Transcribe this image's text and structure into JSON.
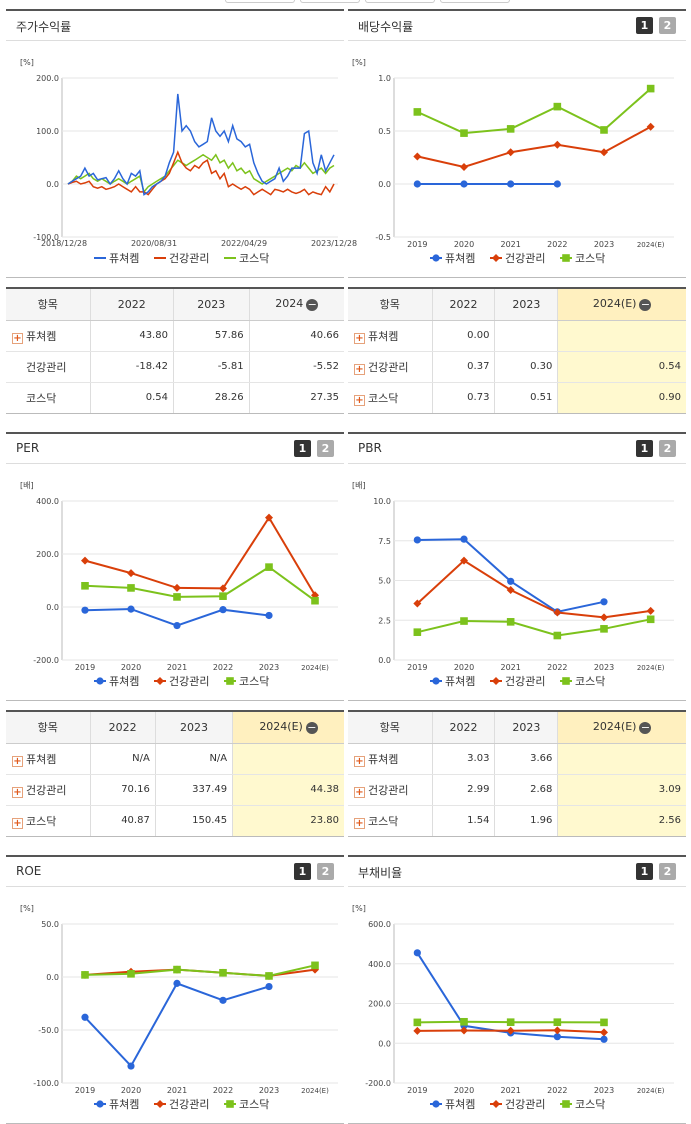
{
  "colors": {
    "s1": "#2a66d9",
    "s2": "#d93f0a",
    "s3": "#7cc21c"
  },
  "legend": [
    "퓨쳐켐",
    "건강관리",
    "코스닥"
  ],
  "panels": {
    "stock": {
      "title": "주가수익률",
      "unit": "[%]"
    },
    "div": {
      "title": "배당수익률",
      "unit": "[%]",
      "tab1": "1",
      "tab2": "2"
    },
    "per": {
      "title": "PER",
      "unit": "[배]",
      "tab1": "1",
      "tab2": "2"
    },
    "pbr": {
      "title": "PBR",
      "unit": "[배]",
      "tab1": "1",
      "tab2": "2"
    },
    "roe": {
      "title": "ROE",
      "unit": "[%]",
      "tab1": "1",
      "tab2": "2"
    },
    "debt": {
      "title": "부채비율",
      "unit": "[%]",
      "tab1": "1",
      "tab2": "2"
    }
  },
  "chart_data": [
    {
      "type": "line",
      "id": "stock",
      "title": "주가수익률",
      "ylim": [
        -100,
        200
      ],
      "yticks": [
        "200.0",
        "100.0",
        "0.0",
        "-100.0"
      ],
      "xticks": [
        "2018/12/28",
        "2020/08/31",
        "2022/04/29",
        "2023/12/28"
      ],
      "series": [
        {
          "name": "퓨쳐켐",
          "values": [
            0,
            5,
            10,
            15,
            30,
            15,
            20,
            8,
            10,
            12,
            0,
            10,
            25,
            10,
            0,
            20,
            15,
            25,
            -20,
            -15,
            -5,
            0,
            5,
            15,
            40,
            60,
            170,
            100,
            110,
            100,
            80,
            70,
            75,
            80,
            125,
            100,
            90,
            100,
            80,
            110,
            85,
            80,
            70,
            75,
            40,
            20,
            5,
            0,
            5,
            10,
            30,
            5,
            15,
            30,
            30,
            30,
            95,
            100,
            40,
            20,
            55,
            25,
            40,
            55
          ]
        },
        {
          "name": "건강관리",
          "values": [
            0,
            3,
            5,
            0,
            2,
            5,
            -5,
            -8,
            -5,
            -10,
            -8,
            -5,
            0,
            -5,
            -10,
            -15,
            -5,
            -15,
            -15,
            -20,
            -10,
            0,
            5,
            10,
            20,
            40,
            60,
            40,
            30,
            25,
            35,
            30,
            40,
            45,
            20,
            25,
            10,
            20,
            -5,
            0,
            -5,
            -10,
            -5,
            -10,
            -20,
            -15,
            -10,
            -15,
            -20,
            -10,
            -12,
            -15,
            -10,
            -15,
            -18,
            -15,
            -10,
            -20,
            -15,
            -18,
            -20,
            -5,
            -15,
            0
          ]
        },
        {
          "name": "코스닥",
          "values": [
            0,
            5,
            15,
            10,
            15,
            20,
            10,
            5,
            10,
            5,
            0,
            5,
            10,
            5,
            0,
            5,
            10,
            15,
            -15,
            -5,
            0,
            5,
            10,
            15,
            25,
            35,
            45,
            40,
            35,
            40,
            45,
            50,
            55,
            50,
            45,
            55,
            40,
            45,
            30,
            40,
            25,
            30,
            20,
            25,
            10,
            5,
            0,
            5,
            10,
            15,
            20,
            25,
            30,
            25,
            35,
            30,
            40,
            30,
            20,
            25,
            30,
            20,
            30,
            35
          ]
        }
      ]
    },
    {
      "type": "line",
      "id": "div",
      "title": "배당수익률",
      "ylim": [
        -0.5,
        1.0
      ],
      "yticks": [
        "1.0",
        "0.5",
        "0.0",
        "-0.5"
      ],
      "categories": [
        "2019",
        "2020",
        "2021",
        "2022",
        "2023",
        "2024(E)"
      ],
      "series": [
        {
          "name": "퓨쳐켐",
          "values": [
            0.0,
            0.0,
            0.0,
            0.0,
            null,
            null
          ]
        },
        {
          "name": "건강관리",
          "values": [
            0.26,
            0.16,
            0.3,
            0.37,
            0.3,
            0.54
          ]
        },
        {
          "name": "코스닥",
          "values": [
            0.68,
            0.48,
            0.52,
            0.73,
            0.51,
            0.9
          ]
        }
      ]
    },
    {
      "type": "line",
      "id": "per",
      "title": "PER",
      "ylim": [
        -200,
        400
      ],
      "yticks": [
        "400.0",
        "200.0",
        "0.0",
        "-200.0"
      ],
      "categories": [
        "2019",
        "2020",
        "2021",
        "2022",
        "2023",
        "2024(E)"
      ],
      "series": [
        {
          "name": "퓨쳐켐",
          "values": [
            -12,
            -8,
            -70,
            -10,
            -32,
            null
          ]
        },
        {
          "name": "건강관리",
          "values": [
            175,
            128,
            72,
            70.16,
            337.49,
            44.38
          ]
        },
        {
          "name": "코스닥",
          "values": [
            80,
            72,
            38,
            40.87,
            150.45,
            23.8
          ]
        }
      ]
    },
    {
      "type": "line",
      "id": "pbr",
      "title": "PBR",
      "ylim": [
        0,
        10
      ],
      "yticks": [
        "10.0",
        "7.5",
        "5.0",
        "2.5",
        "0.0"
      ],
      "categories": [
        "2019",
        "2020",
        "2021",
        "2022",
        "2023",
        "2024(E)"
      ],
      "series": [
        {
          "name": "퓨쳐켐",
          "values": [
            7.55,
            7.6,
            4.95,
            3.03,
            3.66,
            null
          ]
        },
        {
          "name": "건강관리",
          "values": [
            3.55,
            6.25,
            4.4,
            2.99,
            2.68,
            3.09
          ]
        },
        {
          "name": "코스닥",
          "values": [
            1.75,
            2.45,
            2.4,
            1.54,
            1.96,
            2.56
          ]
        }
      ]
    },
    {
      "type": "line",
      "id": "roe",
      "title": "ROE",
      "ylim": [
        -100,
        50
      ],
      "yticks": [
        "50.0",
        "0.0",
        "-50.0",
        "-100.0"
      ],
      "categories": [
        "2019",
        "2020",
        "2021",
        "2022",
        "2023",
        "2024(E)"
      ],
      "series": [
        {
          "name": "퓨쳐켐",
          "values": [
            -38,
            -84,
            -6,
            -22,
            -9,
            null
          ]
        },
        {
          "name": "건강관리",
          "values": [
            2,
            5,
            7,
            4,
            1,
            7
          ]
        },
        {
          "name": "코스닥",
          "values": [
            2,
            3,
            7,
            4,
            1,
            11
          ]
        }
      ]
    },
    {
      "type": "line",
      "id": "debt",
      "title": "부채비율",
      "ylim": [
        -200,
        600
      ],
      "yticks": [
        "600.0",
        "400.0",
        "200.0",
        "0.0",
        "-200.0"
      ],
      "categories": [
        "2019",
        "2020",
        "2021",
        "2022",
        "2023",
        "2024(E)"
      ],
      "series": [
        {
          "name": "퓨쳐켐",
          "values": [
            455,
            88,
            52,
            33,
            20,
            null
          ]
        },
        {
          "name": "건강관리",
          "values": [
            62,
            64,
            63,
            65,
            55,
            null
          ]
        },
        {
          "name": "코스닥",
          "values": [
            105,
            108,
            106,
            106,
            105,
            null
          ]
        }
      ]
    }
  ],
  "tables": {
    "stock": {
      "label": "항목",
      "cols": [
        "2022",
        "2023",
        "2024"
      ],
      "rows": [
        {
          "name": "퓨쳐켐",
          "plus": true,
          "vals": [
            "43.80",
            "57.86",
            "40.66"
          ]
        },
        {
          "name": "건강관리",
          "plus": false,
          "vals": [
            "-18.42",
            "-5.81",
            "-5.52"
          ]
        },
        {
          "name": "코스닥",
          "plus": false,
          "vals": [
            "0.54",
            "28.26",
            "27.35"
          ]
        }
      ]
    },
    "div": {
      "label": "항목",
      "cols": [
        "2022",
        "2023",
        "2024(E)"
      ],
      "rows": [
        {
          "name": "퓨쳐켐",
          "plus": true,
          "vals": [
            "0.00",
            "",
            ""
          ]
        },
        {
          "name": "건강관리",
          "plus": true,
          "vals": [
            "0.37",
            "0.30",
            "0.54"
          ]
        },
        {
          "name": "코스닥",
          "plus": true,
          "vals": [
            "0.73",
            "0.51",
            "0.90"
          ]
        }
      ]
    },
    "per": {
      "label": "항목",
      "cols": [
        "2022",
        "2023",
        "2024(E)"
      ],
      "rows": [
        {
          "name": "퓨쳐켐",
          "plus": true,
          "vals": [
            "N/A",
            "N/A",
            ""
          ]
        },
        {
          "name": "건강관리",
          "plus": true,
          "vals": [
            "70.16",
            "337.49",
            "44.38"
          ]
        },
        {
          "name": "코스닥",
          "plus": true,
          "vals": [
            "40.87",
            "150.45",
            "23.80"
          ]
        }
      ]
    },
    "pbr": {
      "label": "항목",
      "cols": [
        "2022",
        "2023",
        "2024(E)"
      ],
      "rows": [
        {
          "name": "퓨쳐켐",
          "plus": true,
          "vals": [
            "3.03",
            "3.66",
            ""
          ]
        },
        {
          "name": "건강관리",
          "plus": true,
          "vals": [
            "2.99",
            "2.68",
            "3.09"
          ]
        },
        {
          "name": "코스닥",
          "plus": true,
          "vals": [
            "1.54",
            "1.96",
            "2.56"
          ]
        }
      ]
    }
  }
}
